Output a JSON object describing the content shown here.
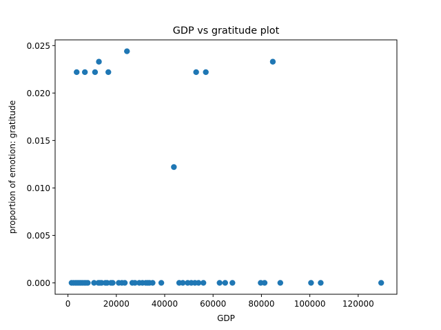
{
  "chart_data": {
    "type": "scatter",
    "title": "GDP vs gratitude plot",
    "xlabel": "GDP",
    "ylabel": "proportion of emotion: gratitude",
    "xlim": [
      -5300,
      136000
    ],
    "ylim": [
      -0.0012,
      0.0256
    ],
    "x_ticks": [
      0,
      20000,
      40000,
      60000,
      80000,
      100000,
      120000
    ],
    "x_tick_labels": [
      "0",
      "20000",
      "40000",
      "60000",
      "80000",
      "100000",
      "120000"
    ],
    "y_ticks": [
      0.0,
      0.005,
      0.01,
      0.015,
      0.02,
      0.025
    ],
    "y_tick_labels": [
      "0.000",
      "0.005",
      "0.010",
      "0.015",
      "0.020",
      "0.025"
    ],
    "grid": false,
    "color": "#1f77b4",
    "series": [
      {
        "x": [
          1500,
          2300,
          3100,
          3800,
          4500,
          5200,
          5900,
          6700,
          7400,
          8200,
          10800,
          12600,
          13200,
          13900,
          15500,
          16200,
          17800,
          18500,
          21000,
          22300,
          23500,
          26600,
          27700,
          29500,
          30800,
          32200,
          33000,
          33700,
          35000,
          38600,
          46000,
          47500,
          49500,
          51000,
          52500,
          54000,
          56000,
          62700,
          65000,
          68000,
          79700,
          81300,
          87800,
          100500,
          104500,
          129500,
          3600,
          7000,
          11200,
          12800,
          16700,
          24400,
          43800,
          53000,
          57000,
          84700
        ],
        "y": [
          0,
          0,
          0,
          0,
          0,
          0,
          0,
          0,
          0,
          0,
          0,
          0,
          0,
          0,
          0,
          0,
          0,
          0,
          0,
          0,
          0,
          0,
          0,
          0,
          0,
          0,
          0,
          0,
          0,
          0,
          0,
          0,
          0,
          0,
          0,
          0,
          0,
          0,
          0,
          0,
          0,
          0,
          0,
          0,
          0,
          0,
          0.0222,
          0.0222,
          0.0222,
          0.0233,
          0.0222,
          0.0244,
          0.0122,
          0.0222,
          0.0222,
          0.0233
        ]
      }
    ]
  }
}
